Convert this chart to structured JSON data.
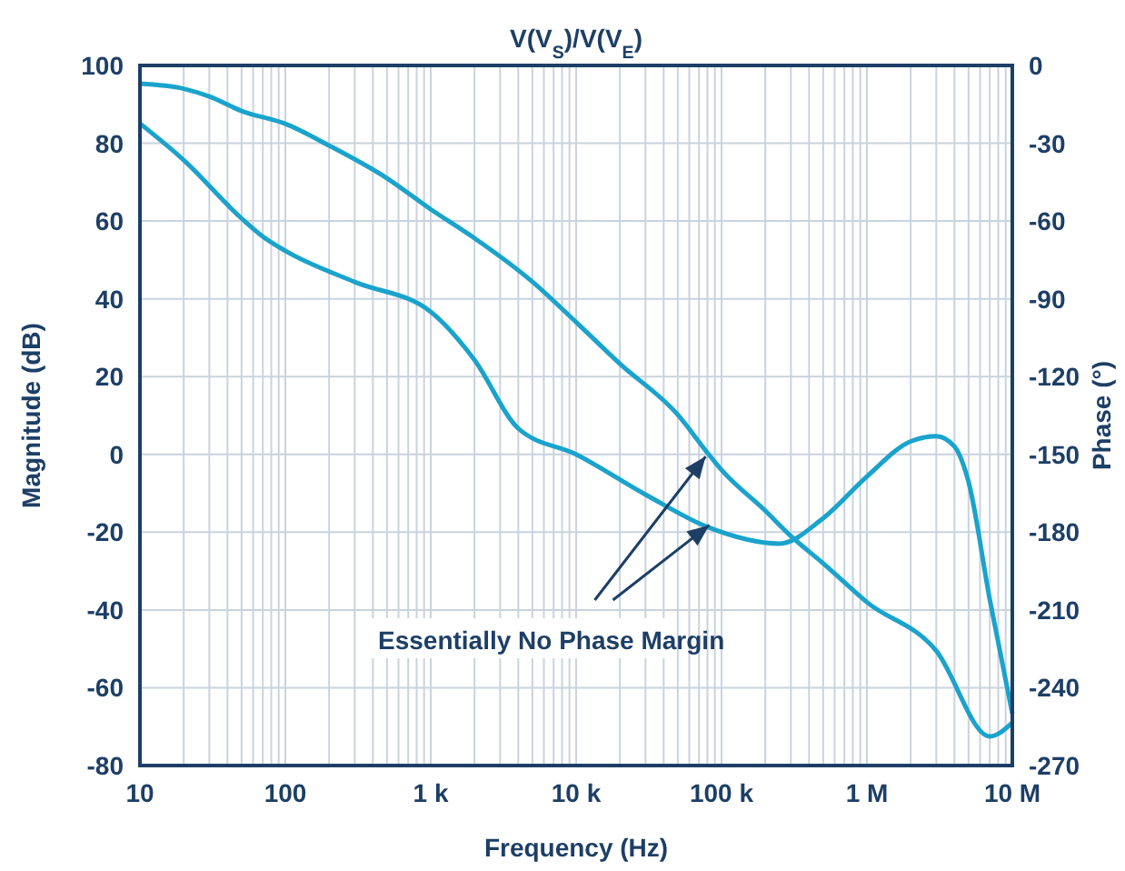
{
  "chart_data": {
    "type": "line",
    "title": "V(V$_{S}$)/V(V$_{E}$)",
    "xlabel": "Frequency (Hz)",
    "ylabel": "Magnitude (dB)",
    "y2label": "Phase (°)",
    "log": "x",
    "grid": true,
    "marker": "none",
    "line_style": "solid",
    "xlim": [
      10,
      10000000
    ],
    "xticks": [
      10,
      100,
      {
        "value": 1000,
        "label": "1 k"
      },
      {
        "value": 10000,
        "label": "10 k"
      },
      {
        "value": 100000,
        "label": "100 k"
      },
      {
        "value": 1000000,
        "label": "1 M"
      },
      {
        "value": 10000000,
        "label": "10 M"
      }
    ],
    "ylim": [
      -80,
      100
    ],
    "yticks": [
      -80,
      -60,
      -40,
      -20,
      0,
      20,
      40,
      60,
      80,
      100
    ],
    "y2lim": [
      -270,
      0
    ],
    "y2ticks": [
      -270,
      -240,
      -210,
      -180,
      -150,
      -120,
      -90,
      -60,
      -30,
      0
    ],
    "annotations": [
      {
        "text": "Essentially No Phase Margin",
        "x": 80000,
        "y": 0.4
      }
    ],
    "series": [
      {
        "color": "#1aa3cc",
        "x": [
          10,
          20,
          30,
          50,
          100,
          200,
          500,
          1000,
          2000,
          5000,
          10000,
          20000,
          50000,
          80000,
          100000,
          200000,
          300000,
          500000,
          1000000,
          3000000,
          7000000,
          10000000
        ],
        "values": [
          95.3,
          94,
          92,
          88.3,
          85,
          79.4,
          71,
          63,
          55.6,
          44.4,
          34,
          23.3,
          10.2,
          0.4,
          -4,
          -14.5,
          -21,
          -28,
          -38,
          -50.5,
          -72.5,
          -69
        ]
      },
      {
        "color": "#1aa3cc",
        "axis": "y2",
        "x": [
          10,
          20,
          50,
          70,
          100,
          300,
          1000,
          2000,
          4000,
          10000,
          30000,
          80000,
          250000,
          500000,
          1000000,
          2000000,
          3000000,
          4000000,
          5000000,
          7000000,
          10000000
        ],
        "values": [
          -22.4,
          -36.5,
          -59,
          -66,
          -71.5,
          -83.5,
          -95,
          -113.6,
          -140,
          -150,
          -165.5,
          -178,
          -184.4,
          -174.6,
          -158.5,
          -145,
          -143,
          -147,
          -160.6,
          -206,
          -250
        ]
      }
    ]
  }
}
